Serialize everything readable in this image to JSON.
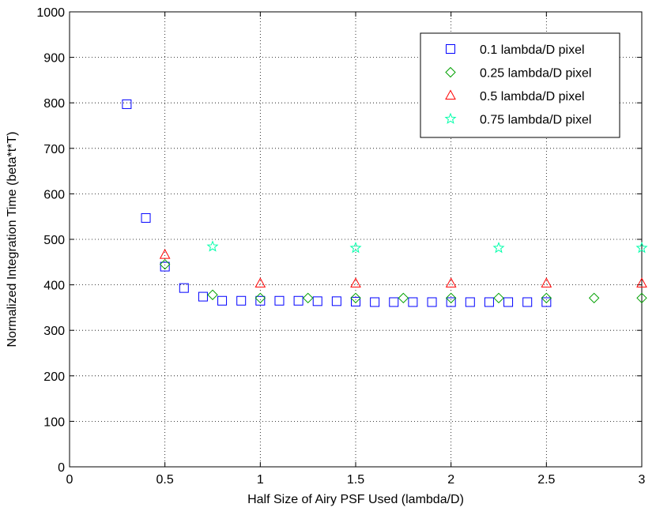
{
  "chart_data": {
    "type": "scatter",
    "title": "",
    "xlabel": "Half Size of Airy PSF Used (lambda/D)",
    "ylabel": "Normalized Integration Time (beta*t*T)",
    "xlim": [
      0,
      3
    ],
    "ylim": [
      0,
      1000
    ],
    "xticks": [
      0,
      0.5,
      1,
      1.5,
      2,
      2.5,
      3
    ],
    "xtick_labels": [
      "0",
      "0.5",
      "1",
      "1.5",
      "2",
      "2.5",
      "3"
    ],
    "yticks": [
      0,
      100,
      200,
      300,
      400,
      500,
      600,
      700,
      800,
      900,
      1000
    ],
    "ytick_labels": [
      "0",
      "100",
      "200",
      "300",
      "400",
      "500",
      "600",
      "700",
      "800",
      "900",
      "1000"
    ],
    "grid": true,
    "legend_position": "top-right",
    "series": [
      {
        "name": "0.1 lambda/D pixel",
        "marker": "square",
        "color": "#0000ff",
        "x": [
          0.3,
          0.4,
          0.5,
          0.6,
          0.7,
          0.8,
          0.9,
          1.0,
          1.1,
          1.2,
          1.3,
          1.4,
          1.5,
          1.6,
          1.7,
          1.8,
          1.9,
          2.0,
          2.1,
          2.2,
          2.3,
          2.4,
          2.5
        ],
        "y": [
          797,
          547,
          440,
          393,
          374,
          365,
          365,
          365,
          365,
          365,
          364,
          364,
          363,
          362,
          362,
          362,
          362,
          362,
          362,
          362,
          362,
          362,
          362
        ]
      },
      {
        "name": "0.25 lambda/D pixel",
        "marker": "diamond",
        "color": "#00a000",
        "x": [
          0.5,
          0.75,
          1.0,
          1.25,
          1.5,
          1.75,
          2.0,
          2.25,
          2.5,
          2.75,
          3.0
        ],
        "y": [
          445,
          378,
          371,
          371,
          371,
          371,
          371,
          371,
          371,
          371,
          371
        ]
      },
      {
        "name": "0.5 lambda/D pixel",
        "marker": "triangle",
        "color": "#ff0000",
        "x": [
          0.5,
          1.0,
          1.5,
          2.0,
          2.5,
          3.0
        ],
        "y": [
          466,
          403,
          403,
          403,
          403,
          403
        ]
      },
      {
        "name": "0.75 lambda/D pixel",
        "marker": "star",
        "color": "#00ffaa",
        "x": [
          0.75,
          1.5,
          2.25,
          3.0
        ],
        "y": [
          484,
          481,
          481,
          481
        ]
      }
    ]
  }
}
